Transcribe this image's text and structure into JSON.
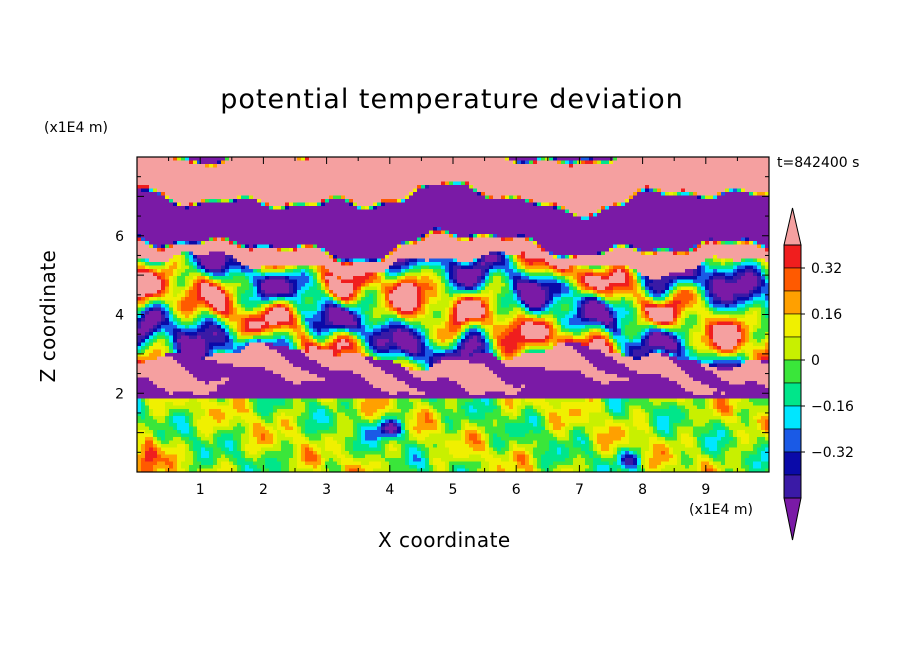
{
  "chart_data": {
    "type": "heatmap",
    "title": "potential temperature deviation",
    "time_label": "t=842400 s",
    "xlabel": "X coordinate",
    "ylabel": "Z coordinate",
    "x_unit": "(x1E4 m)",
    "y_unit": "(x1E4 m)",
    "xlim": [
      0,
      10
    ],
    "ylim": [
      0,
      8
    ],
    "x_ticks": [
      "1",
      "2",
      "3",
      "4",
      "5",
      "6",
      "7",
      "8",
      "9"
    ],
    "y_ticks": [
      "2",
      "4",
      "6"
    ],
    "colorbar": {
      "levels": [
        -0.48,
        -0.4,
        -0.32,
        -0.24,
        -0.16,
        -0.08,
        0,
        0.08,
        0.16,
        0.24,
        0.32,
        0.4
      ],
      "labels": [
        "0.32",
        "0.16",
        "0",
        "-0.16",
        "-0.32"
      ],
      "colors": [
        "#7a1aa6",
        "#3a1aa6",
        "#0a0aa8",
        "#1a5ae6",
        "#00e6ff",
        "#00e68a",
        "#3ae63a",
        "#c8f000",
        "#f0f000",
        "#ffa000",
        "#ff5a00",
        "#f01e1e",
        "#f5a0a0"
      ]
    },
    "field_description": [
      {
        "z_range": [
          0,
          1.8
        ],
        "dominant": "0 to 0.16 with eddies down to -0.4"
      },
      {
        "z_range": [
          1.8,
          2.2
        ],
        "dominant": "-0.48"
      },
      {
        "z_range": [
          2.2,
          3.0
        ],
        "dominant": "0.4 (layered with -0.48)"
      },
      {
        "z_range": [
          3.0,
          5.2
        ],
        "dominant": "mixed -0.48 to 0.4"
      },
      {
        "z_range": [
          5.2,
          8.0
        ],
        "dominant": "alternating 0.4 and -0.48 layers"
      }
    ]
  }
}
